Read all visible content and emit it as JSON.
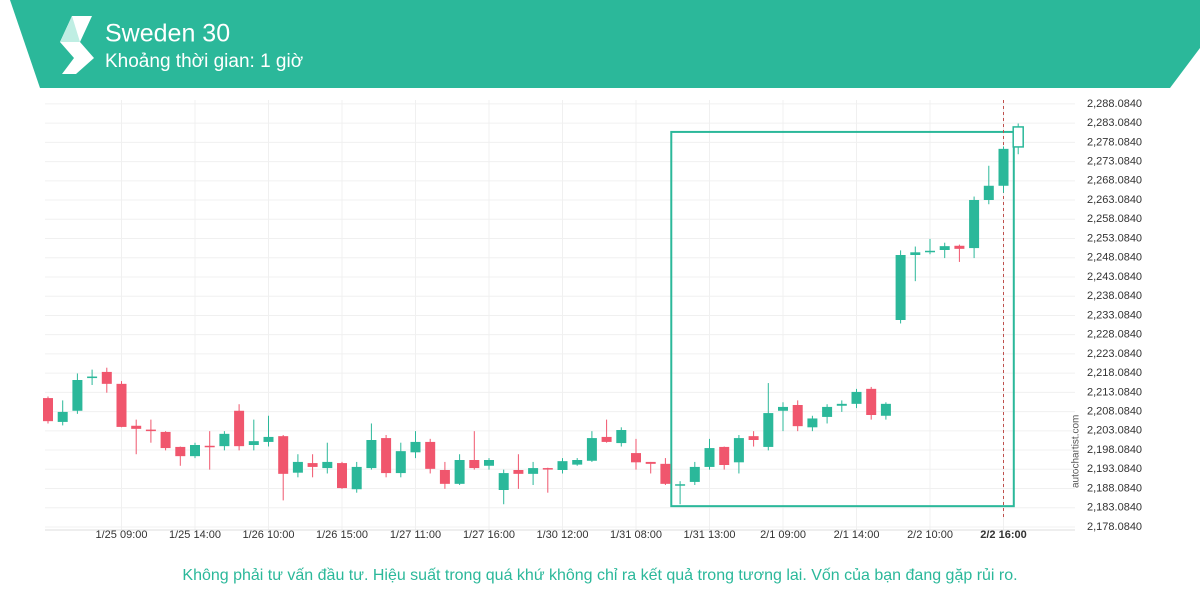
{
  "chart_data": {
    "type": "candlestick",
    "title": "Sweden 30",
    "subtitle": "Khoảng thời gian: 1 giờ",
    "categories": [
      null,
      null,
      null,
      null,
      null,
      "1/25 09:00",
      null,
      null,
      null,
      null,
      "1/25 14:00",
      null,
      null,
      null,
      null,
      "1/26 10:00",
      null,
      null,
      null,
      null,
      "1/26 15:00",
      null,
      null,
      null,
      null,
      "1/27 11:00",
      null,
      null,
      null,
      null,
      "1/27 16:00",
      null,
      null,
      null,
      null,
      "1/30 12:00",
      null,
      null,
      null,
      null,
      "1/31 08:00",
      null,
      null,
      null,
      null,
      "1/31 13:00",
      null,
      null,
      null,
      null,
      "2/1 09:00",
      null,
      null,
      null,
      null,
      "2/1 14:00",
      null,
      null,
      null,
      null,
      "2/2 10:00",
      null,
      null,
      null,
      null,
      "2/2 16:00",
      null
    ],
    "open": [
      2211.6,
      2205.4,
      2208.3,
      2216.8,
      2218.4,
      2215.3,
      2204.4,
      2203.4,
      2202.8,
      2198.9,
      2196.5,
      2199.2,
      2199.1,
      2208.3,
      2199.4,
      2200.2,
      2201.7,
      2192.2,
      2194.7,
      2193.4,
      2194.7,
      2187.9,
      2193.4,
      2201.2,
      2192.1,
      2197.5,
      2200.2,
      2192.9,
      2189.3,
      2195.5,
      2194.0,
      2187.7,
      2192.9,
      2191.9,
      2193.4,
      2192.9,
      2194.3,
      2195.3,
      2201.5,
      2199.9,
      2197.3,
      2195.0,
      2194.5,
      2189.0,
      2189.8,
      2193.7,
      2198.9,
      2194.9,
      2201.7,
      2198.9,
      2208.3,
      2209.8,
      2204.0,
      2206.7,
      2209.6,
      2210.1,
      2214.0,
      2207.0,
      2231.9,
      2248.8,
      2249.6,
      2250.1,
      2251.2,
      2250.6,
      2263.1,
      2266.8,
      2276.9
    ],
    "high": [
      2212.0,
      2211.0,
      2218.0,
      2219.0,
      2219.5,
      2216.0,
      2206.0,
      2206.0,
      2203.0,
      2199.0,
      2200.0,
      2203.0,
      2203.0,
      2210.0,
      2206.0,
      2207.0,
      2202.0,
      2197.0,
      2197.0,
      2200.0,
      2195.0,
      2195.0,
      2205.0,
      2202.0,
      2200.0,
      2203.0,
      2201.0,
      2195.0,
      2197.0,
      2203.0,
      2196.0,
      2193.0,
      2197.0,
      2195.0,
      2193.5,
      2196.0,
      2196.0,
      2203.0,
      2206.0,
      2204.0,
      2201.0,
      2195.0,
      2196.0,
      2190.0,
      2195.0,
      2201.0,
      2199.0,
      2202.0,
      2203.0,
      2215.5,
      2210.5,
      2211.0,
      2207.0,
      2210.0,
      2211.0,
      2214.0,
      2214.5,
      2210.5,
      2250.0,
      2251.0,
      2253.0,
      2252.0,
      2251.5,
      2264.0,
      2272.0,
      2277.0,
      2283.0
    ],
    "low": [
      2205.0,
      2204.5,
      2207.5,
      2215.0,
      2213.0,
      2204.0,
      2197.0,
      2200.0,
      2198.0,
      2194.0,
      2196.0,
      2193.0,
      2198.0,
      2198.0,
      2198.0,
      2199.0,
      2185.0,
      2191.0,
      2191.0,
      2192.0,
      2188.0,
      2187.0,
      2193.0,
      2191.0,
      2191.0,
      2196.0,
      2192.0,
      2188.0,
      2189.0,
      2193.0,
      2193.0,
      2184.0,
      2188.0,
      2189.0,
      2187.0,
      2192.0,
      2194.0,
      2195.0,
      2200.0,
      2199.0,
      2193.0,
      2192.0,
      2189.0,
      2184.0,
      2189.0,
      2193.0,
      2193.0,
      2192.0,
      2199.0,
      2198.0,
      2203.0,
      2203.0,
      2203.0,
      2205.0,
      2208.0,
      2209.0,
      2206.0,
      2206.0,
      2231.0,
      2242.0,
      2249.0,
      2248.0,
      2247.0,
      2248.0,
      2262.0,
      2265.0,
      2275.0
    ],
    "close": [
      2205.6,
      2208.0,
      2216.3,
      2217.2,
      2215.3,
      2204.1,
      2203.6,
      2203.2,
      2198.6,
      2196.5,
      2199.4,
      2199.0,
      2202.3,
      2199.1,
      2200.4,
      2201.5,
      2191.9,
      2195.0,
      2193.7,
      2195.0,
      2188.2,
      2193.7,
      2200.7,
      2192.1,
      2197.8,
      2200.2,
      2193.2,
      2189.3,
      2195.5,
      2193.4,
      2195.5,
      2192.1,
      2191.9,
      2193.4,
      2193.3,
      2195.2,
      2195.5,
      2201.2,
      2200.2,
      2203.3,
      2194.9,
      2194.5,
      2189.3,
      2189.2,
      2193.7,
      2198.6,
      2194.2,
      2201.2,
      2200.7,
      2207.7,
      2209.3,
      2204.3,
      2206.3,
      2209.3,
      2210.1,
      2213.2,
      2207.2,
      2210.1,
      2248.8,
      2249.5,
      2249.9,
      2251.1,
      2250.4,
      2263.1,
      2266.8,
      2276.4,
      2282.1
    ],
    "up_color": "#2bb89a",
    "down_color": "#f0566d",
    "ylim": [
      2177.3,
      2289.1
    ],
    "yticks": [
      {
        "value": 2178.084,
        "label": "2,178.0840"
      },
      {
        "value": 2183.084,
        "label": "2,183.0840"
      },
      {
        "value": 2188.084,
        "label": "2,188.0840"
      },
      {
        "value": 2193.084,
        "label": "2,193.0840"
      },
      {
        "value": 2198.084,
        "label": "2,198.0840"
      },
      {
        "value": 2203.084,
        "label": "2,203.0840"
      },
      {
        "value": 2208.084,
        "label": "2,208.0840"
      },
      {
        "value": 2213.084,
        "label": "2,213.0840"
      },
      {
        "value": 2218.084,
        "label": "2,218.0840"
      },
      {
        "value": 2223.084,
        "label": "2,223.0840"
      },
      {
        "value": 2228.084,
        "label": "2,228.0840"
      },
      {
        "value": 2233.084,
        "label": "2,233.0840"
      },
      {
        "value": 2238.084,
        "label": "2,238.0840"
      },
      {
        "value": 2243.084,
        "label": "2,243.0840"
      },
      {
        "value": 2248.084,
        "label": "2,248.0840"
      },
      {
        "value": 2253.084,
        "label": "2,253.0840"
      },
      {
        "value": 2258.084,
        "label": "2,258.0840"
      },
      {
        "value": 2263.084,
        "label": "2,263.0840"
      },
      {
        "value": 2268.084,
        "label": "2,268.0840"
      },
      {
        "value": 2273.084,
        "label": "2,273.0840"
      },
      {
        "value": 2278.084,
        "label": "2,278.0840"
      },
      {
        "value": 2283.084,
        "label": "2,283.0840"
      },
      {
        "value": 2288.084,
        "label": "2,288.0840"
      }
    ],
    "grid": true,
    "highlight": {
      "from": 42.4,
      "to": 65.7,
      "top": 2280.8,
      "bottom": 2183.5,
      "color": "#2bb89a"
    },
    "marker_index": 65,
    "watermark": "autochartist.com",
    "disclaimer": "Không phải tư vấn đầu tư. Hiệu suất trong quá khứ không chỉ ra kết quả trong tương lai. Vốn của bạn đang gặp rủi ro."
  }
}
